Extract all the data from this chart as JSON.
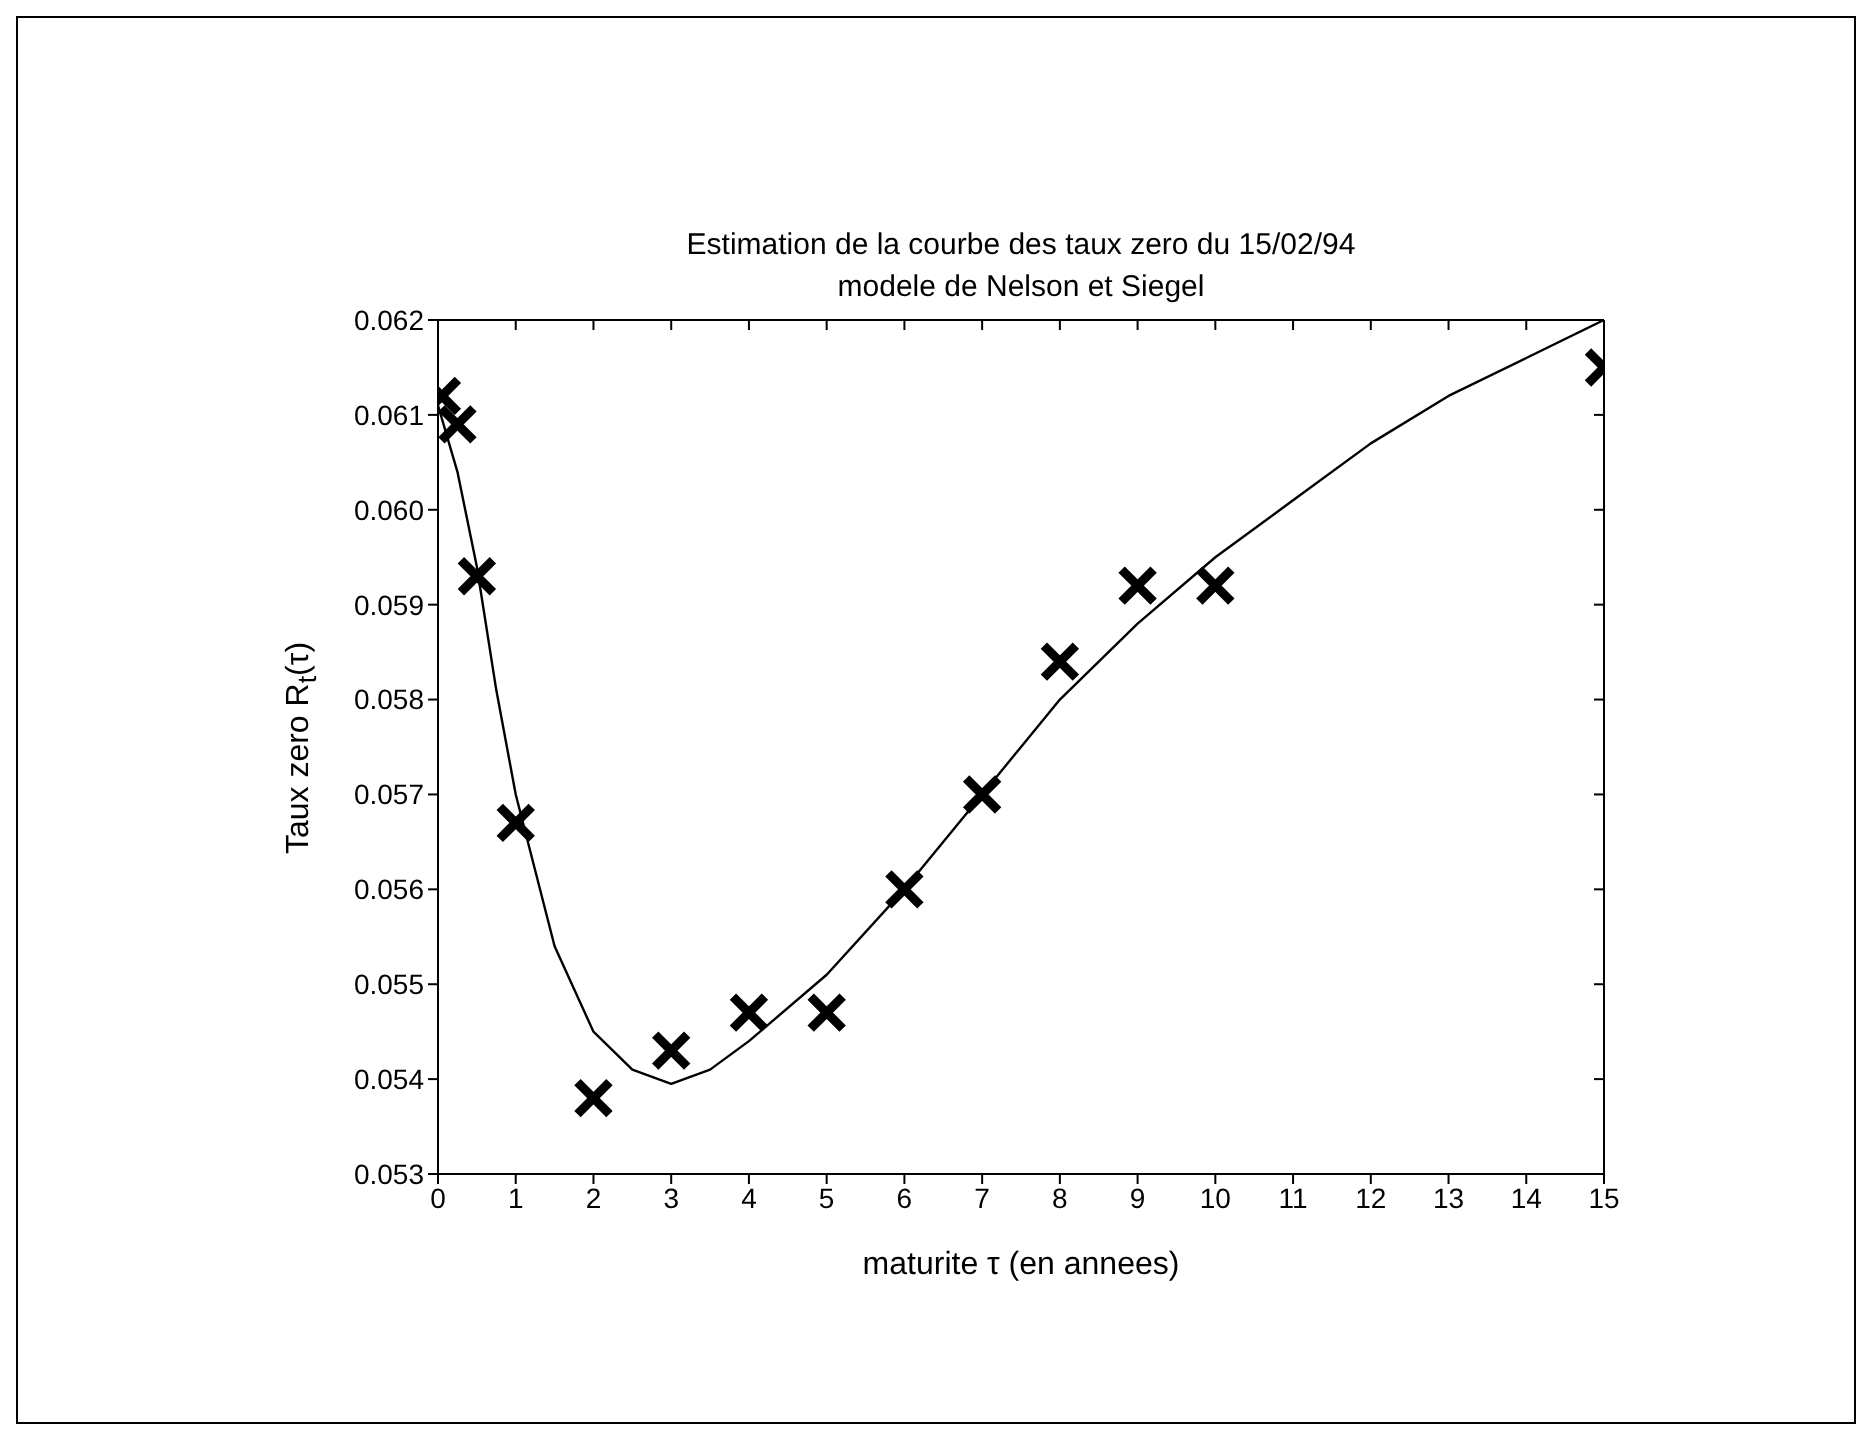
{
  "chart_data": {
    "type": "scatter",
    "title": "Estimation de la courbe des taux zero du 15/02/94",
    "subtitle": "modele de Nelson et Siegel",
    "xlabel": "maturite τ (en annees)",
    "ylabel": "Taux zero R$_{t}$(τ)",
    "xlim": [
      0,
      15
    ],
    "xticks": [
      0,
      1,
      2,
      3,
      4,
      5,
      6,
      7,
      8,
      9,
      10,
      11,
      12,
      13,
      14,
      15
    ],
    "ylim": [
      0.053,
      0.062
    ],
    "yticks": [
      0.053,
      0.054,
      0.055,
      0.056,
      0.057,
      0.058,
      0.059,
      {
        "value": 0.06,
        "label": "0.060"
      },
      0.061,
      0.062
    ],
    "series": [
      {
        "marker": "cross",
        "color": "#000000",
        "x": [
          0.05,
          0.25,
          0.5,
          1,
          2,
          3,
          4,
          5,
          6,
          7,
          8,
          9,
          10,
          15
        ],
        "values": [
          0.0612,
          0.0609,
          0.0593,
          0.0567,
          0.0538,
          0.0543,
          0.0547,
          0.0547,
          0.056,
          0.057,
          0.0584,
          0.0592,
          0.0592,
          0.0615
        ]
      },
      {
        "type": "line",
        "line_style": "solid",
        "color": "#000000",
        "x": [
          0,
          0.25,
          0.5,
          0.75,
          1,
          1.5,
          2,
          2.5,
          3,
          3.5,
          4,
          5,
          6,
          7,
          8,
          9,
          10,
          11,
          12,
          13,
          14,
          15
        ],
        "values": [
          0.0611,
          0.0604,
          0.0594,
          0.0581,
          0.057,
          0.0554,
          0.0545,
          0.0541,
          0.05395,
          0.0541,
          0.0544,
          0.0551,
          0.056,
          0.057,
          0.058,
          0.0588,
          0.0595,
          0.0601,
          0.0607,
          0.0612,
          0.0616,
          0.062
        ]
      }
    ]
  }
}
